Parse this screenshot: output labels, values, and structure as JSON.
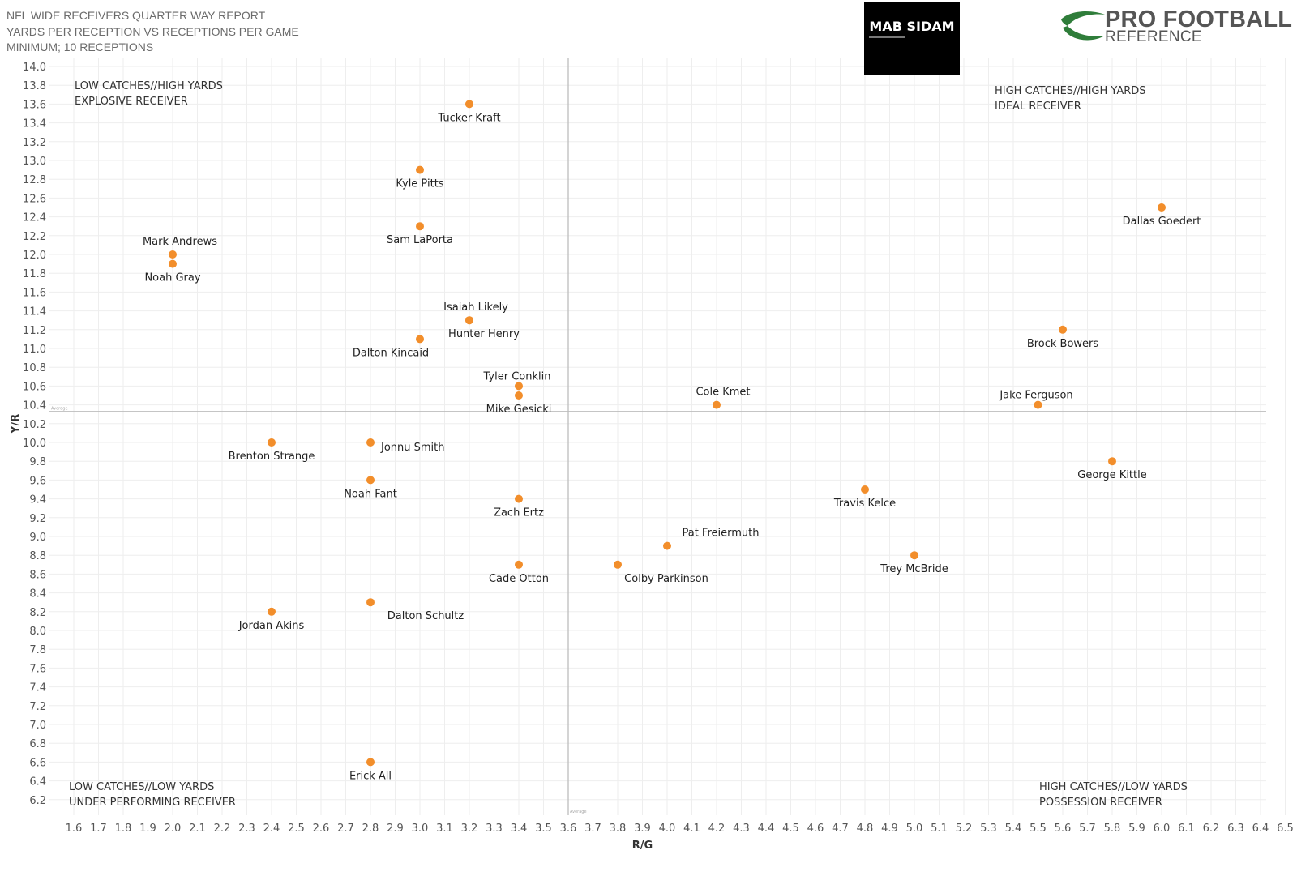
{
  "header": {
    "line1": "NFL WIDE RECEIVERS QUARTER WAY REPORT",
    "line2": "YARDS PER RECEPTION VS RECEPTIONS PER GAME",
    "line3": "MINIMUM; 10 RECEPTIONS"
  },
  "badge": {
    "name": "MAB SIDAM"
  },
  "pfr_logo": {
    "line1": "PRO FOOTBALL",
    "line2": "REFERENCE",
    "color": "#2f7d3a"
  },
  "chart_data": {
    "type": "scatter",
    "xlabel": "R/G",
    "ylabel": "Y/R",
    "xlim": [
      1.6,
      6.5
    ],
    "ylim": [
      6.2,
      14.0
    ],
    "x_ticks": [
      "1.6",
      "1.7",
      "1.8",
      "1.9",
      "2.0",
      "2.1",
      "2.2",
      "2.3",
      "2.4",
      "2.5",
      "2.6",
      "2.7",
      "2.8",
      "2.9",
      "3.0",
      "3.1",
      "3.2",
      "3.3",
      "3.4",
      "3.5",
      "3.6",
      "3.7",
      "3.8",
      "3.9",
      "4.0",
      "4.1",
      "4.2",
      "4.3",
      "4.4",
      "4.5",
      "4.6",
      "4.7",
      "4.8",
      "4.9",
      "5.0",
      "5.1",
      "5.2",
      "5.3",
      "5.4",
      "5.5",
      "5.6",
      "5.7",
      "5.8",
      "5.9",
      "6.0",
      "6.1",
      "6.2",
      "6.3",
      "6.4",
      "6.5"
    ],
    "y_ticks": [
      "6.2",
      "6.4",
      "6.6",
      "6.8",
      "7.0",
      "7.2",
      "7.4",
      "7.6",
      "7.8",
      "8.0",
      "8.2",
      "8.4",
      "8.6",
      "8.8",
      "9.0",
      "9.2",
      "9.4",
      "9.6",
      "9.8",
      "10.0",
      "10.2",
      "10.4",
      "10.6",
      "10.8",
      "11.0",
      "11.2",
      "11.4",
      "11.6",
      "11.8",
      "12.0",
      "12.2",
      "12.4",
      "12.6",
      "12.8",
      "13.0",
      "13.2",
      "13.4",
      "13.6",
      "13.8",
      "14.0"
    ],
    "grid": true,
    "point_color": "#f28e2b",
    "reference_lines": {
      "x": 3.6,
      "y": 10.33,
      "label": "Average"
    },
    "quadrant_labels": [
      {
        "line1": "LOW CATCHES//HIGH YARDS",
        "line2": "EXPLOSIVE RECEIVER"
      },
      {
        "line1": "HIGH CATCHES//HIGH YARDS",
        "line2": "IDEAL RECEIVER"
      },
      {
        "line1": "LOW CATCHES//LOW YARDS",
        "line2": "UNDER PERFORMING RECEIVER"
      },
      {
        "line1": "HIGH CATCHES//LOW YARDS",
        "line2": "POSSESSION RECEIVER"
      }
    ],
    "points": [
      {
        "name": "Tucker Kraft",
        "x": 3.2,
        "y": 13.6,
        "label_pos": "below"
      },
      {
        "name": "Kyle Pitts",
        "x": 3.0,
        "y": 12.9,
        "label_pos": "below"
      },
      {
        "name": "Sam LaPorta",
        "x": 3.0,
        "y": 12.3,
        "label_pos": "below"
      },
      {
        "name": "Dallas Goedert",
        "x": 6.0,
        "y": 12.5,
        "label_pos": "below"
      },
      {
        "name": "Mark Andrews",
        "x": 2.0,
        "y": 12.0,
        "label_pos": "above-right"
      },
      {
        "name": "Noah Gray",
        "x": 2.0,
        "y": 11.9,
        "label_pos": "below"
      },
      {
        "name": "Isaiah Likely",
        "x": 3.2,
        "y": 11.3,
        "label_pos": "above-right"
      },
      {
        "name": "Hunter Henry",
        "x": 3.2,
        "y": 11.3,
        "label_pos": "below-right"
      },
      {
        "name": "Dalton Kincaid",
        "x": 3.0,
        "y": 11.1,
        "label_pos": "below-left"
      },
      {
        "name": "Brock Bowers",
        "x": 5.6,
        "y": 11.2,
        "label_pos": "below"
      },
      {
        "name": "Tyler Conklin",
        "x": 3.4,
        "y": 10.6,
        "label_pos": "above"
      },
      {
        "name": "Mike Gesicki",
        "x": 3.4,
        "y": 10.5,
        "label_pos": "below"
      },
      {
        "name": "Cole Kmet",
        "x": 4.2,
        "y": 10.4,
        "label_pos": "above-right"
      },
      {
        "name": "Jake Ferguson",
        "x": 5.5,
        "y": 10.4,
        "label_pos": "above"
      },
      {
        "name": "Brenton Strange",
        "x": 2.4,
        "y": 10.0,
        "label_pos": "below"
      },
      {
        "name": "Jonnu Smith",
        "x": 2.8,
        "y": 10.0,
        "label_pos": "right"
      },
      {
        "name": "George Kittle",
        "x": 5.8,
        "y": 9.8,
        "label_pos": "below"
      },
      {
        "name": "Noah Fant",
        "x": 2.8,
        "y": 9.6,
        "label_pos": "below"
      },
      {
        "name": "Travis Kelce",
        "x": 4.8,
        "y": 9.5,
        "label_pos": "below"
      },
      {
        "name": "Zach Ertz",
        "x": 3.4,
        "y": 9.4,
        "label_pos": "below"
      },
      {
        "name": "Pat Freiermuth",
        "x": 4.0,
        "y": 8.9,
        "label_pos": "above-right"
      },
      {
        "name": "Trey McBride",
        "x": 5.0,
        "y": 8.8,
        "label_pos": "below"
      },
      {
        "name": "Cade Otton",
        "x": 3.4,
        "y": 8.7,
        "label_pos": "below"
      },
      {
        "name": "Colby Parkinson",
        "x": 3.8,
        "y": 8.7,
        "label_pos": "below-right"
      },
      {
        "name": "Dalton Schultz",
        "x": 2.8,
        "y": 8.3,
        "label_pos": "below-right"
      },
      {
        "name": "Jordan Akins",
        "x": 2.4,
        "y": 8.2,
        "label_pos": "below"
      },
      {
        "name": "Erick All",
        "x": 2.8,
        "y": 6.6,
        "label_pos": "below"
      }
    ]
  }
}
